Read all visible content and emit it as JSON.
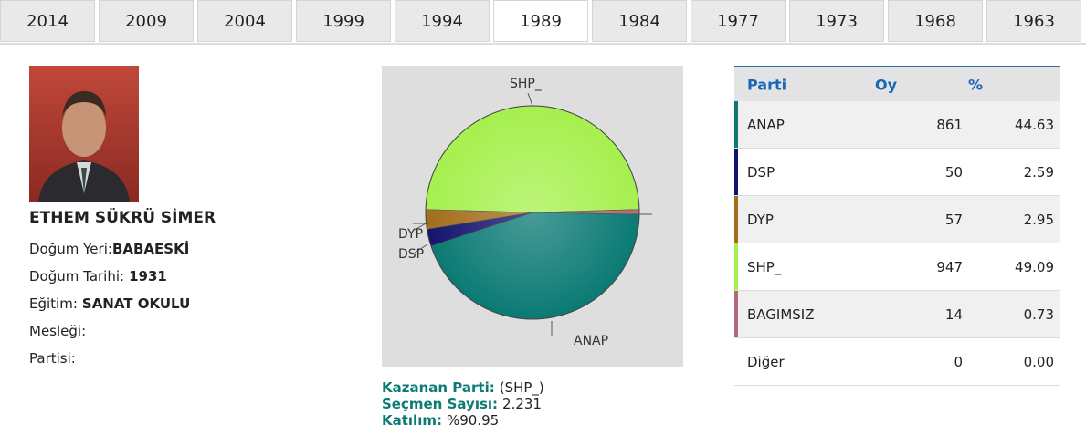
{
  "tabs": [
    "2014",
    "2009",
    "2004",
    "1999",
    "1994",
    "1989",
    "1984",
    "1977",
    "1973",
    "1968",
    "1963"
  ],
  "candidate": {
    "name": "ETHEM SÜKRÜ SİMER",
    "fields": [
      {
        "label": "Doğum Yeri:",
        "value": "BABAESKİ"
      },
      {
        "label": "Doğum Tarihi:",
        "value": "1931"
      },
      {
        "label": "Eğitim:",
        "value": "SANAT OKULU"
      },
      {
        "label": "Mesleği:"
      },
      {
        "label": "Partisi:"
      }
    ]
  },
  "summary": [
    {
      "label": "Kazanan Parti:",
      "value": "(SHP_)"
    },
    {
      "label": "Seçmen Sayısı:",
      "value": "2.231"
    },
    {
      "label": "Katılım:",
      "value": "%90.95"
    }
  ],
  "table": {
    "headers": [
      "Parti",
      "Oy",
      "%"
    ],
    "rows": [
      {
        "party": "ANAP",
        "color": "#0b7a74",
        "votes": 861,
        "percent": "44.63"
      },
      {
        "party": "DSP",
        "color": "#14146e",
        "votes": 50,
        "percent": "2.59"
      },
      {
        "party": "DYP",
        "color": "#a36e1c",
        "votes": 57,
        "percent": "2.95"
      },
      {
        "party": "SHP_",
        "color": "#a6f04e",
        "votes": 947,
        "percent": "49.09"
      },
      {
        "party": "BAGIMSIZ",
        "color": "#b06a78",
        "votes": 14,
        "percent": "0.73"
      },
      {
        "party": "Diğer",
        "votes": 0,
        "percent": "0.00"
      }
    ]
  }
}
